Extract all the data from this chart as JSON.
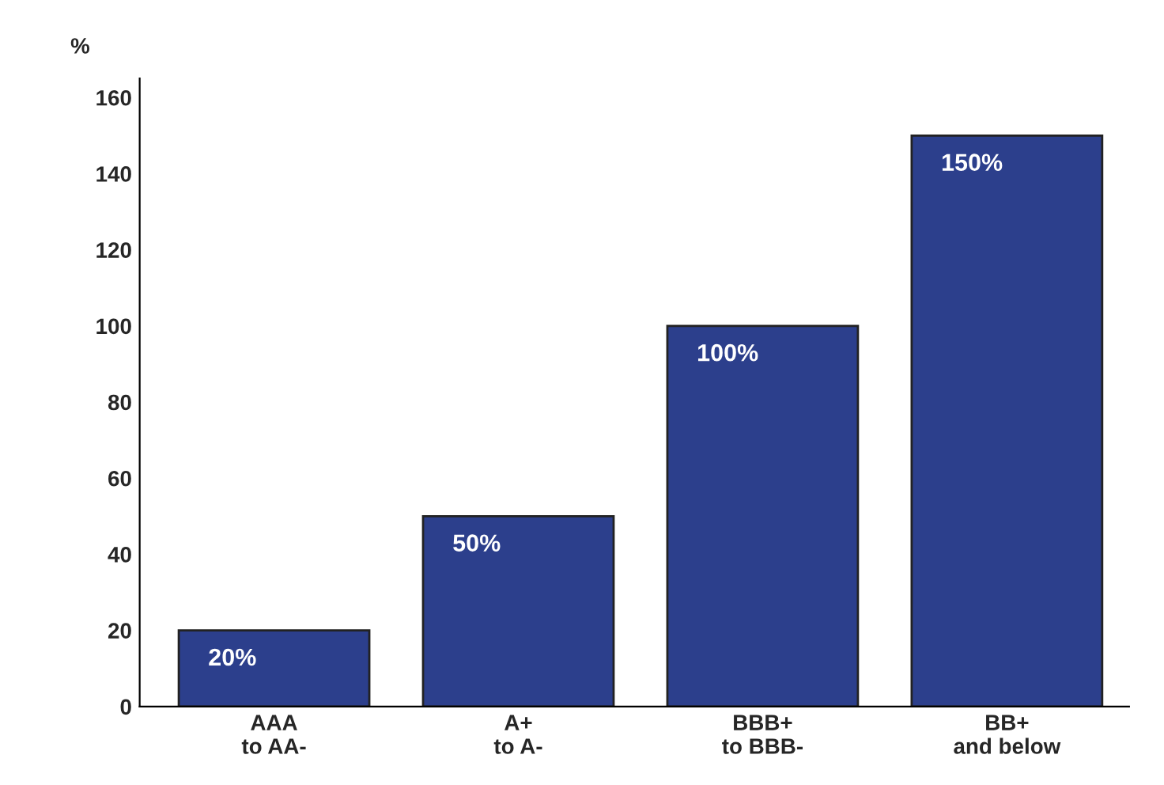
{
  "chart_data": {
    "type": "bar",
    "ylabel": "%",
    "categories": [
      "AAA\nto AA-",
      "A+\nto A-",
      "BBB+\nto BBB-",
      "BB+\nand below"
    ],
    "values": [
      20,
      50,
      100,
      150
    ],
    "color": "#2c3f8c",
    "value_labels": [
      "20%",
      "50%",
      "100%",
      "150%"
    ],
    "ylim": [
      0,
      165
    ],
    "yticks": [
      0,
      20,
      40,
      60,
      80,
      100,
      120,
      140,
      160
    ],
    "grid": false,
    "legend": false
  }
}
